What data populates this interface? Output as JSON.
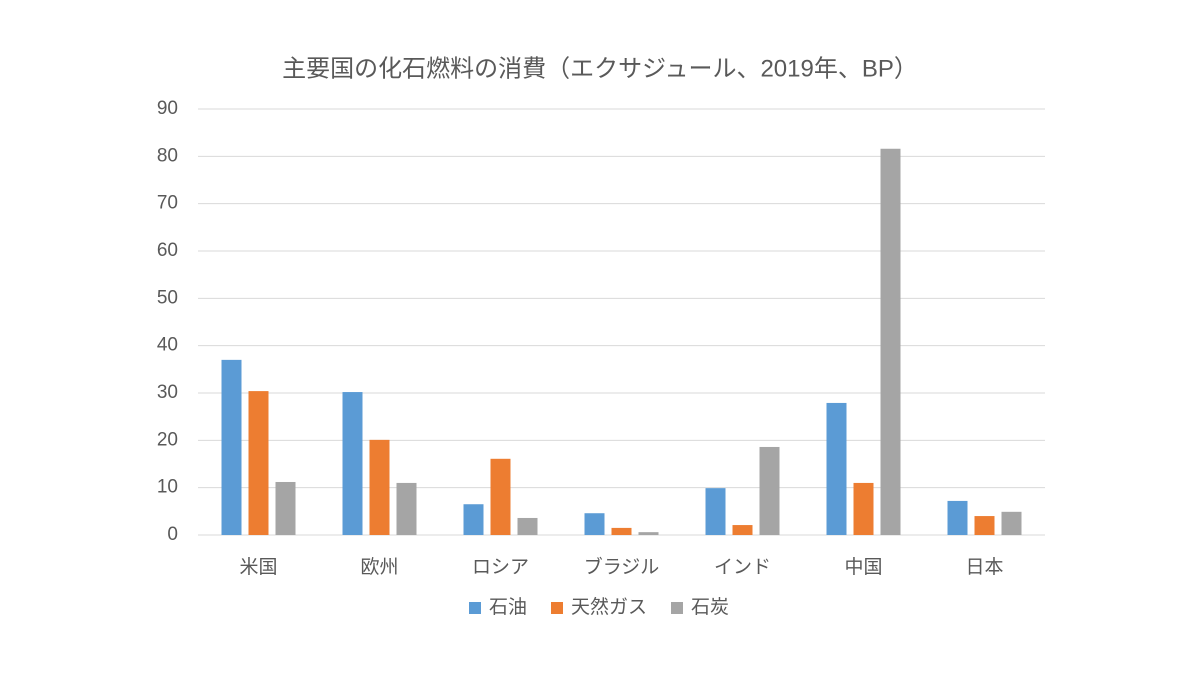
{
  "chart_data": {
    "type": "bar",
    "title": "主要国の化石燃料の消費（エクサジュール、2019年、BP）",
    "categories": [
      "米国",
      "欧州",
      "ロシア",
      "ブラジル",
      "インド",
      "中国",
      "日本"
    ],
    "series": [
      {
        "name": "石油",
        "color": "#5b9bd5",
        "values": [
          37.0,
          30.2,
          6.5,
          4.6,
          9.9,
          27.9,
          7.2
        ]
      },
      {
        "name": "天然ガス",
        "color": "#ed7d31",
        "values": [
          30.4,
          20.1,
          16.1,
          1.5,
          2.1,
          11.0,
          4.0
        ]
      },
      {
        "name": "石炭",
        "color": "#a5a5a5",
        "values": [
          11.2,
          11.0,
          3.6,
          0.6,
          18.6,
          81.6,
          4.9
        ]
      }
    ],
    "ylim": [
      0,
      90
    ],
    "yticks": [
      0,
      10,
      20,
      30,
      40,
      50,
      60,
      70,
      80,
      90
    ],
    "grid": true,
    "legend": "bottom"
  }
}
